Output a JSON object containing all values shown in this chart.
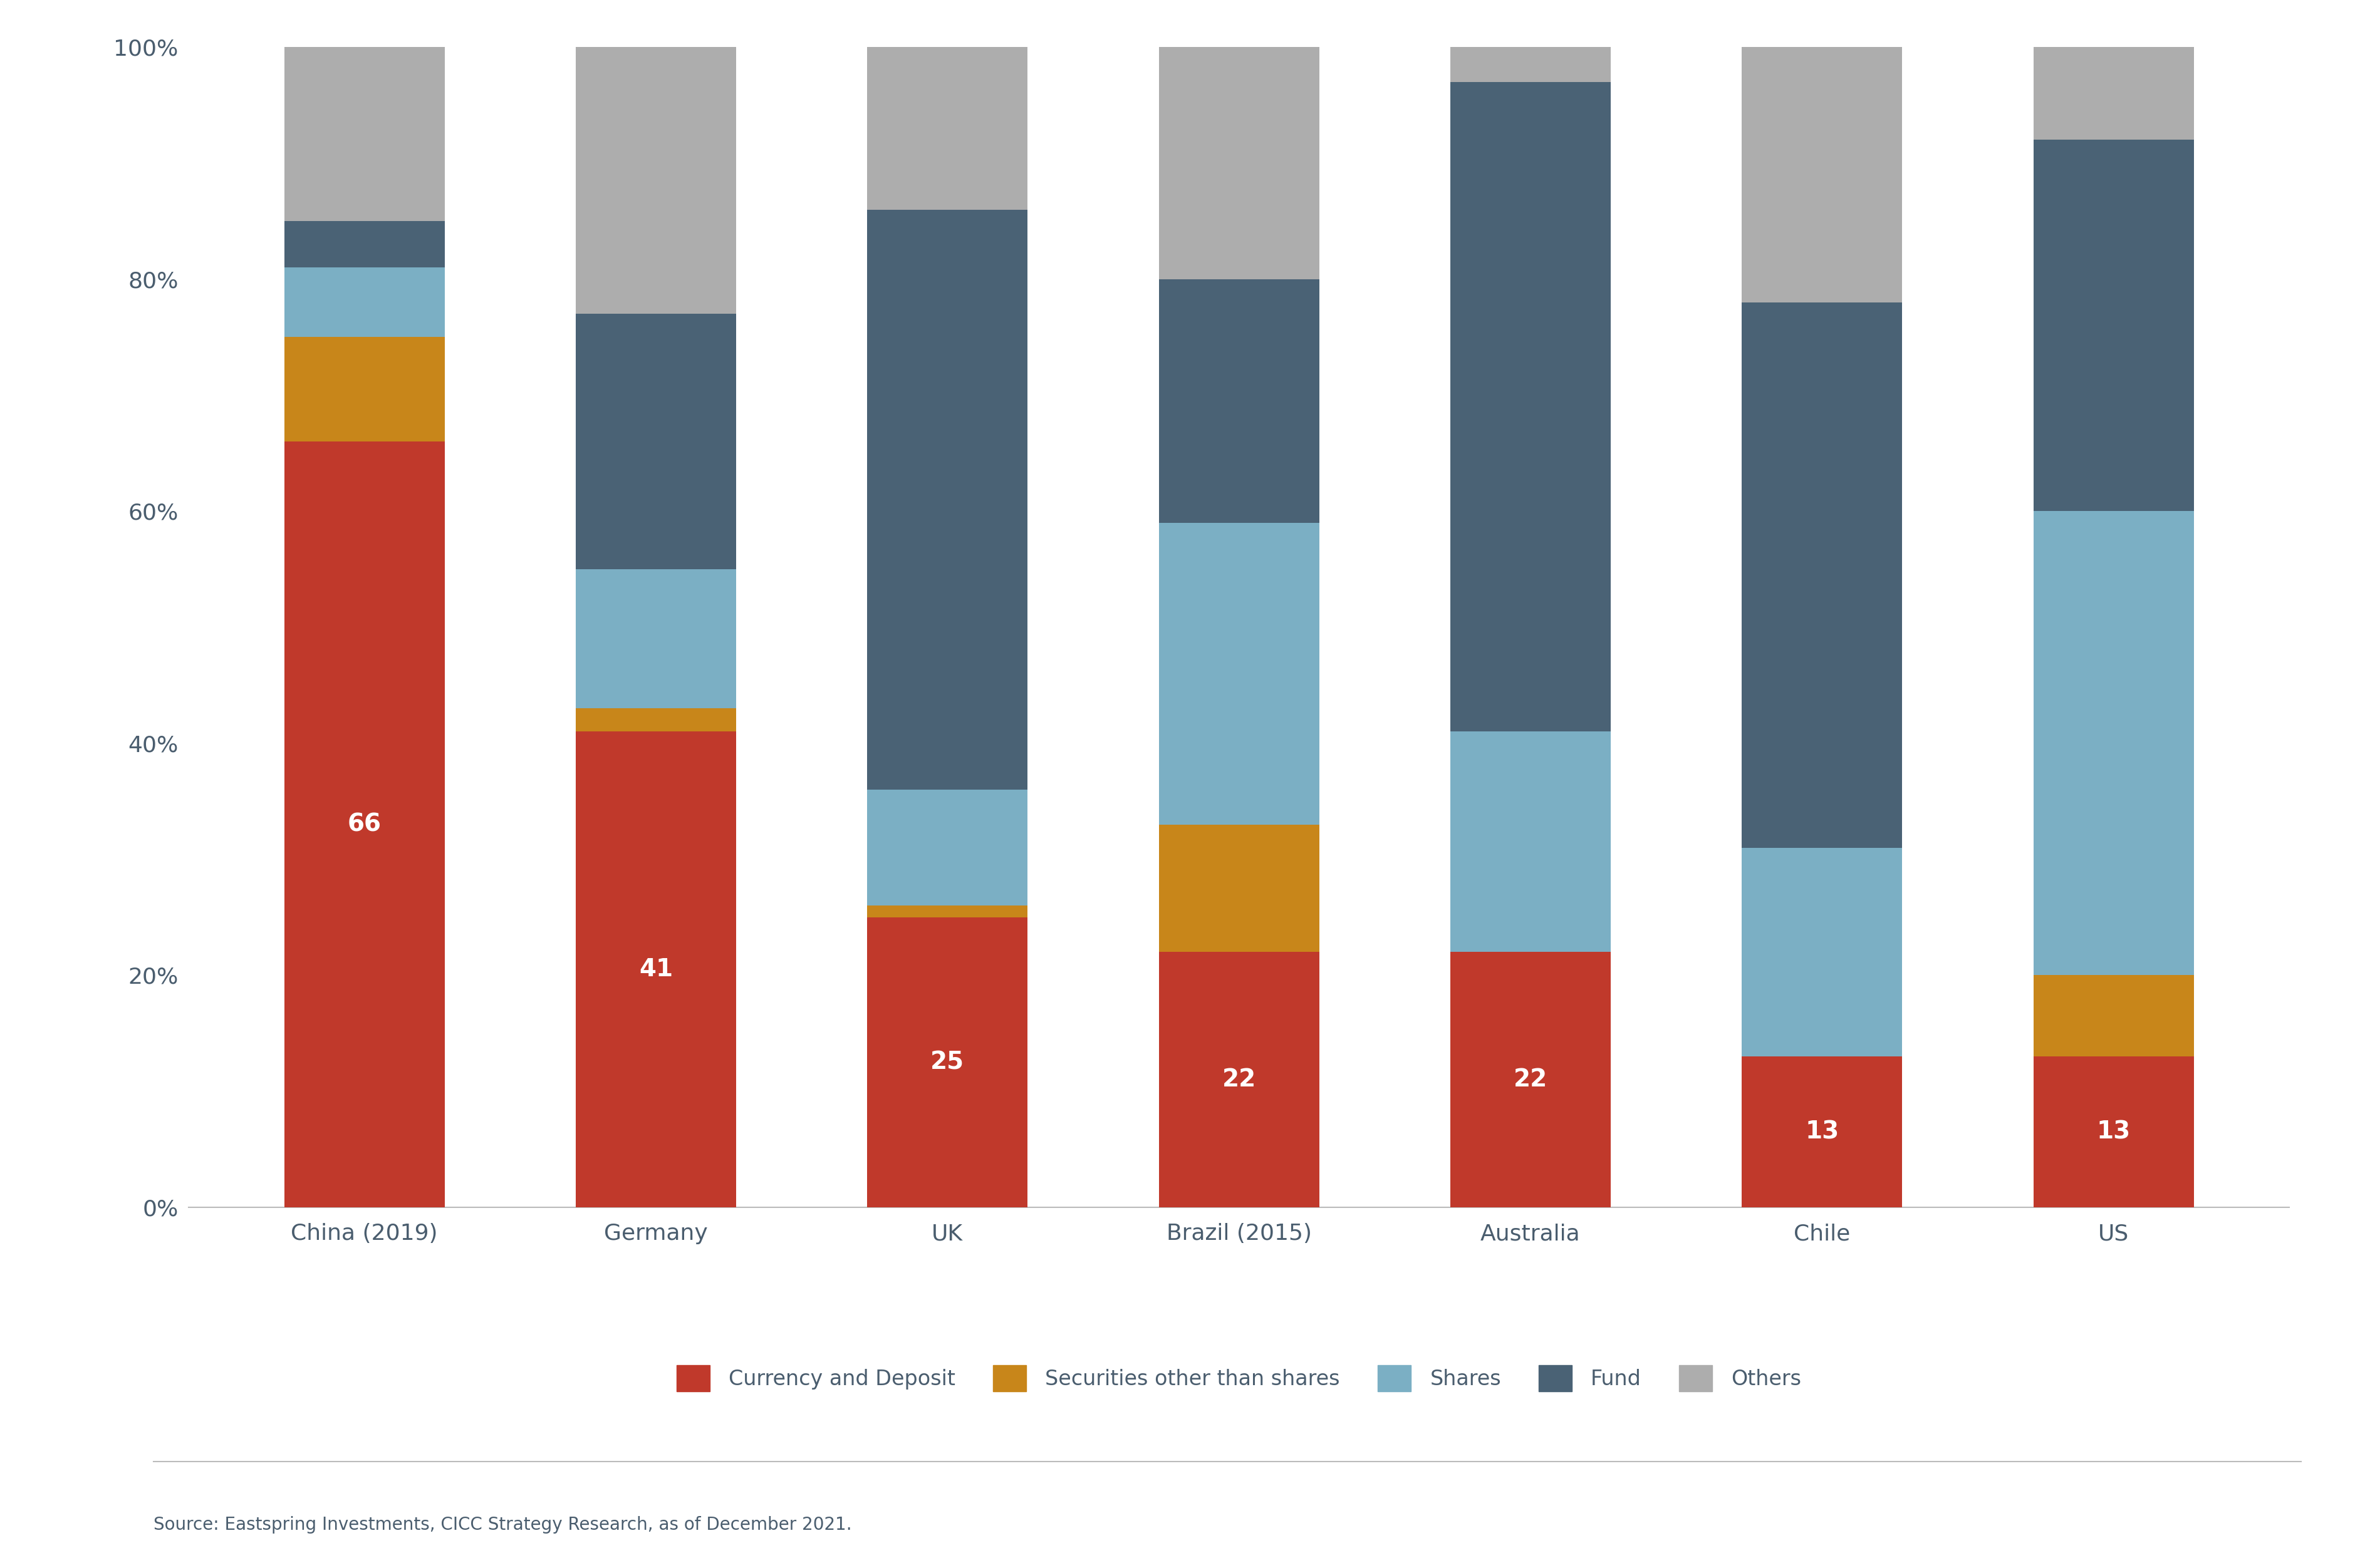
{
  "categories": [
    "China (2019)",
    "Germany",
    "UK",
    "Brazil (2015)",
    "Australia",
    "Chile",
    "US"
  ],
  "series": {
    "Currency and Deposit": [
      66,
      41,
      25,
      22,
      22,
      13,
      13
    ],
    "Securities other than shares": [
      9,
      2,
      1,
      11,
      0,
      0,
      7
    ],
    "Shares": [
      6,
      12,
      10,
      26,
      19,
      18,
      40
    ],
    "Fund": [
      4,
      22,
      50,
      21,
      56,
      47,
      32
    ],
    "Others": [
      15,
      23,
      14,
      20,
      3,
      22,
      8
    ]
  },
  "colors": {
    "Currency and Deposit": "#C0392B",
    "Securities other than shares": "#C8861A",
    "Shares": "#7BAFC4",
    "Fund": "#4A6275",
    "Others": "#ADADAD"
  },
  "label_values": [
    66,
    41,
    25,
    22,
    22,
    13,
    13
  ],
  "yticks": [
    0,
    20,
    40,
    60,
    80,
    100
  ],
  "ytick_labels": [
    "0%",
    "20%",
    "40%",
    "60%",
    "80%",
    "100%"
  ],
  "legend_order": [
    "Currency and Deposit",
    "Securities other than shares",
    "Shares",
    "Fund",
    "Others"
  ],
  "source_text": "Source: Eastspring Investments, CICC Strategy Research, as of December 2021.",
  "background_color": "#FFFFFF",
  "bar_width": 0.55,
  "label_fontsize": 28,
  "tick_fontsize": 26,
  "legend_fontsize": 24,
  "source_fontsize": 20,
  "text_color": "#4A5D6E"
}
